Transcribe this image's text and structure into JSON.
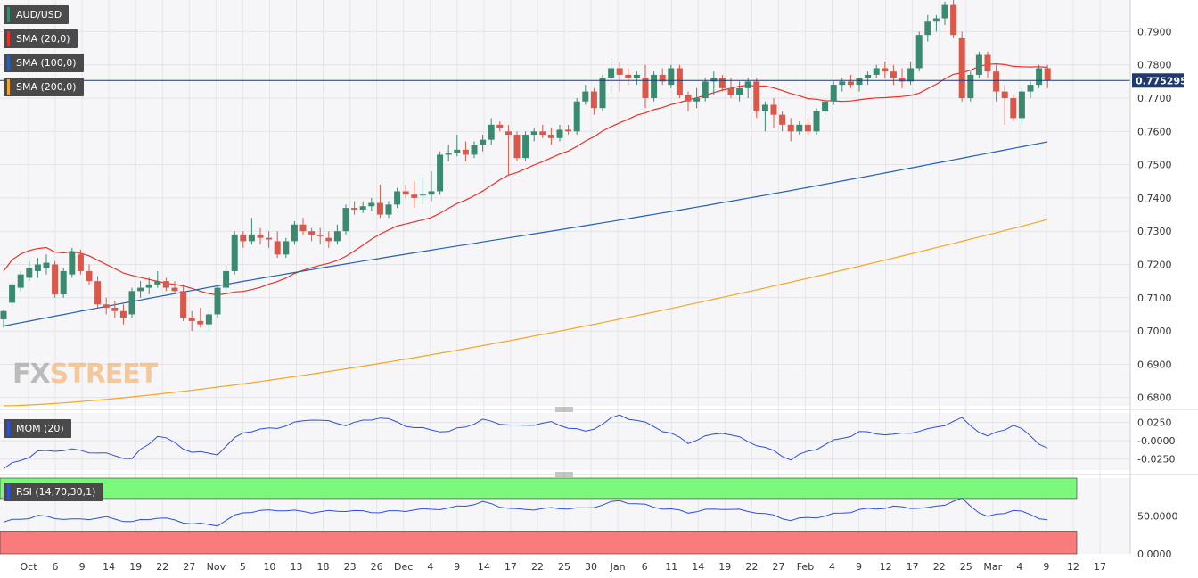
{
  "symbol": "AUD/USD",
  "indicators": {
    "sma20_label": "SMA (20,0)",
    "sma100_label": "SMA (100,0)",
    "sma200_label": "SMA (200,0)",
    "mom_label": "MOM (20)",
    "rsi_label": "RSI (14,70,30,1)"
  },
  "current_price": "0.775295",
  "logo": {
    "fx": "FX",
    "street": "STREET"
  },
  "colors": {
    "bull": "#3a8a70",
    "bear": "#d9584a",
    "sma20": "#e8312a",
    "sma100": "#2461b3",
    "sma200": "#f5a623",
    "mom_line": "#2b4fd8",
    "rsi_line": "#2b4fd8",
    "rsi_overbought": "#7cf87c",
    "rsi_oversold": "#f87c7c",
    "price_line": "#1e3a6e"
  },
  "chart_data": {
    "type": "candlestick",
    "ylim": [
      0.6775,
      0.7995
    ],
    "y_ticks": [
      "0.7900",
      "0.7800",
      "0.7700",
      "0.7600",
      "0.7500",
      "0.7400",
      "0.7300",
      "0.7200",
      "0.7100",
      "0.7000",
      "0.6900",
      "0.6800"
    ],
    "x_ticks": [
      "Oct",
      "6",
      "9",
      "14",
      "19",
      "22",
      "27",
      "Nov",
      "5",
      "10",
      "13",
      "18",
      "23",
      "26",
      "Dec",
      "4",
      "9",
      "14",
      "17",
      "22",
      "25",
      "30",
      "Jan",
      "6",
      "11",
      "14",
      "19",
      "22",
      "27",
      "Feb",
      "4",
      "9",
      "12",
      "17",
      "22",
      "25",
      "Mar",
      "4",
      "9",
      "12",
      "17"
    ],
    "candles": [
      {
        "o": 0.7035,
        "h": 0.7065,
        "l": 0.701,
        "c": 0.706
      },
      {
        "o": 0.7085,
        "h": 0.715,
        "l": 0.7075,
        "c": 0.714
      },
      {
        "o": 0.713,
        "h": 0.718,
        "l": 0.712,
        "c": 0.717
      },
      {
        "o": 0.716,
        "h": 0.721,
        "l": 0.715,
        "c": 0.719
      },
      {
        "o": 0.718,
        "h": 0.722,
        "l": 0.716,
        "c": 0.72
      },
      {
        "o": 0.719,
        "h": 0.723,
        "l": 0.717,
        "c": 0.7205
      },
      {
        "o": 0.72,
        "h": 0.721,
        "l": 0.71,
        "c": 0.711
      },
      {
        "o": 0.711,
        "h": 0.719,
        "l": 0.71,
        "c": 0.718
      },
      {
        "o": 0.717,
        "h": 0.725,
        "l": 0.716,
        "c": 0.724
      },
      {
        "o": 0.723,
        "h": 0.7245,
        "l": 0.717,
        "c": 0.718
      },
      {
        "o": 0.718,
        "h": 0.72,
        "l": 0.714,
        "c": 0.715
      },
      {
        "o": 0.715,
        "h": 0.7165,
        "l": 0.707,
        "c": 0.708
      },
      {
        "o": 0.708,
        "h": 0.71,
        "l": 0.705,
        "c": 0.707
      },
      {
        "o": 0.707,
        "h": 0.709,
        "l": 0.704,
        "c": 0.706
      },
      {
        "o": 0.706,
        "h": 0.708,
        "l": 0.702,
        "c": 0.704
      },
      {
        "o": 0.705,
        "h": 0.713,
        "l": 0.704,
        "c": 0.712
      },
      {
        "o": 0.712,
        "h": 0.715,
        "l": 0.71,
        "c": 0.713
      },
      {
        "o": 0.713,
        "h": 0.716,
        "l": 0.711,
        "c": 0.714
      },
      {
        "o": 0.714,
        "h": 0.718,
        "l": 0.713,
        "c": 0.715
      },
      {
        "o": 0.715,
        "h": 0.716,
        "l": 0.712,
        "c": 0.713
      },
      {
        "o": 0.713,
        "h": 0.715,
        "l": 0.711,
        "c": 0.712
      },
      {
        "o": 0.712,
        "h": 0.714,
        "l": 0.703,
        "c": 0.704
      },
      {
        "o": 0.704,
        "h": 0.706,
        "l": 0.7,
        "c": 0.703
      },
      {
        "o": 0.703,
        "h": 0.707,
        "l": 0.701,
        "c": 0.702
      },
      {
        "o": 0.702,
        "h": 0.7065,
        "l": 0.699,
        "c": 0.705
      },
      {
        "o": 0.705,
        "h": 0.714,
        "l": 0.704,
        "c": 0.713
      },
      {
        "o": 0.713,
        "h": 0.72,
        "l": 0.712,
        "c": 0.718
      },
      {
        "o": 0.718,
        "h": 0.73,
        "l": 0.717,
        "c": 0.729
      },
      {
        "o": 0.729,
        "h": 0.73,
        "l": 0.725,
        "c": 0.727
      },
      {
        "o": 0.727,
        "h": 0.734,
        "l": 0.726,
        "c": 0.729
      },
      {
        "o": 0.729,
        "h": 0.731,
        "l": 0.726,
        "c": 0.728
      },
      {
        "o": 0.728,
        "h": 0.73,
        "l": 0.725,
        "c": 0.7275
      },
      {
        "o": 0.727,
        "h": 0.73,
        "l": 0.722,
        "c": 0.723
      },
      {
        "o": 0.723,
        "h": 0.728,
        "l": 0.722,
        "c": 0.727
      },
      {
        "o": 0.727,
        "h": 0.733,
        "l": 0.726,
        "c": 0.732
      },
      {
        "o": 0.732,
        "h": 0.734,
        "l": 0.729,
        "c": 0.73
      },
      {
        "o": 0.73,
        "h": 0.731,
        "l": 0.727,
        "c": 0.729
      },
      {
        "o": 0.729,
        "h": 0.731,
        "l": 0.726,
        "c": 0.7285
      },
      {
        "o": 0.728,
        "h": 0.73,
        "l": 0.725,
        "c": 0.727
      },
      {
        "o": 0.727,
        "h": 0.732,
        "l": 0.726,
        "c": 0.73
      },
      {
        "o": 0.73,
        "h": 0.738,
        "l": 0.729,
        "c": 0.737
      },
      {
        "o": 0.737,
        "h": 0.739,
        "l": 0.735,
        "c": 0.7365
      },
      {
        "o": 0.7365,
        "h": 0.739,
        "l": 0.7355,
        "c": 0.7375
      },
      {
        "o": 0.7375,
        "h": 0.74,
        "l": 0.736,
        "c": 0.7385
      },
      {
        "o": 0.7385,
        "h": 0.744,
        "l": 0.734,
        "c": 0.735
      },
      {
        "o": 0.735,
        "h": 0.739,
        "l": 0.734,
        "c": 0.738
      },
      {
        "o": 0.738,
        "h": 0.743,
        "l": 0.737,
        "c": 0.742
      },
      {
        "o": 0.742,
        "h": 0.744,
        "l": 0.74,
        "c": 0.741
      },
      {
        "o": 0.741,
        "h": 0.745,
        "l": 0.737,
        "c": 0.74
      },
      {
        "o": 0.741,
        "h": 0.746,
        "l": 0.738,
        "c": 0.741
      },
      {
        "o": 0.741,
        "h": 0.748,
        "l": 0.739,
        "c": 0.742
      },
      {
        "o": 0.742,
        "h": 0.754,
        "l": 0.741,
        "c": 0.753
      },
      {
        "o": 0.753,
        "h": 0.756,
        "l": 0.751,
        "c": 0.7535
      },
      {
        "o": 0.7535,
        "h": 0.759,
        "l": 0.7525,
        "c": 0.7545
      },
      {
        "o": 0.7545,
        "h": 0.757,
        "l": 0.751,
        "c": 0.753
      },
      {
        "o": 0.753,
        "h": 0.757,
        "l": 0.752,
        "c": 0.756
      },
      {
        "o": 0.756,
        "h": 0.759,
        "l": 0.754,
        "c": 0.7575
      },
      {
        "o": 0.7575,
        "h": 0.764,
        "l": 0.756,
        "c": 0.762
      },
      {
        "o": 0.762,
        "h": 0.763,
        "l": 0.76,
        "c": 0.761
      },
      {
        "o": 0.76,
        "h": 0.762,
        "l": 0.747,
        "c": 0.759
      },
      {
        "o": 0.759,
        "h": 0.76,
        "l": 0.751,
        "c": 0.752
      },
      {
        "o": 0.752,
        "h": 0.76,
        "l": 0.751,
        "c": 0.759
      },
      {
        "o": 0.759,
        "h": 0.761,
        "l": 0.757,
        "c": 0.76
      },
      {
        "o": 0.76,
        "h": 0.762,
        "l": 0.758,
        "c": 0.759
      },
      {
        "o": 0.759,
        "h": 0.761,
        "l": 0.756,
        "c": 0.758
      },
      {
        "o": 0.758,
        "h": 0.762,
        "l": 0.757,
        "c": 0.7605
      },
      {
        "o": 0.7605,
        "h": 0.762,
        "l": 0.759,
        "c": 0.76
      },
      {
        "o": 0.76,
        "h": 0.77,
        "l": 0.759,
        "c": 0.769
      },
      {
        "o": 0.769,
        "h": 0.774,
        "l": 0.768,
        "c": 0.772
      },
      {
        "o": 0.772,
        "h": 0.773,
        "l": 0.765,
        "c": 0.767
      },
      {
        "o": 0.767,
        "h": 0.777,
        "l": 0.766,
        "c": 0.776
      },
      {
        "o": 0.776,
        "h": 0.782,
        "l": 0.771,
        "c": 0.779
      },
      {
        "o": 0.779,
        "h": 0.781,
        "l": 0.772,
        "c": 0.777
      },
      {
        "o": 0.777,
        "h": 0.779,
        "l": 0.774,
        "c": 0.776
      },
      {
        "o": 0.776,
        "h": 0.778,
        "l": 0.774,
        "c": 0.777
      },
      {
        "o": 0.776,
        "h": 0.78,
        "l": 0.767,
        "c": 0.77
      },
      {
        "o": 0.77,
        "h": 0.778,
        "l": 0.769,
        "c": 0.777
      },
      {
        "o": 0.777,
        "h": 0.779,
        "l": 0.774,
        "c": 0.775
      },
      {
        "o": 0.774,
        "h": 0.78,
        "l": 0.773,
        "c": 0.779
      },
      {
        "o": 0.779,
        "h": 0.78,
        "l": 0.77,
        "c": 0.771
      },
      {
        "o": 0.771,
        "h": 0.772,
        "l": 0.766,
        "c": 0.769
      },
      {
        "o": 0.769,
        "h": 0.773,
        "l": 0.767,
        "c": 0.77
      },
      {
        "o": 0.77,
        "h": 0.776,
        "l": 0.769,
        "c": 0.775
      },
      {
        "o": 0.775,
        "h": 0.778,
        "l": 0.771,
        "c": 0.776
      },
      {
        "o": 0.776,
        "h": 0.777,
        "l": 0.772,
        "c": 0.773
      },
      {
        "o": 0.773,
        "h": 0.776,
        "l": 0.77,
        "c": 0.771
      },
      {
        "o": 0.771,
        "h": 0.775,
        "l": 0.769,
        "c": 0.773
      },
      {
        "o": 0.773,
        "h": 0.776,
        "l": 0.77,
        "c": 0.775
      },
      {
        "o": 0.775,
        "h": 0.776,
        "l": 0.764,
        "c": 0.766
      },
      {
        "o": 0.766,
        "h": 0.769,
        "l": 0.76,
        "c": 0.768
      },
      {
        "o": 0.768,
        "h": 0.77,
        "l": 0.761,
        "c": 0.765
      },
      {
        "o": 0.765,
        "h": 0.766,
        "l": 0.76,
        "c": 0.762
      },
      {
        "o": 0.762,
        "h": 0.764,
        "l": 0.757,
        "c": 0.76
      },
      {
        "o": 0.76,
        "h": 0.763,
        "l": 0.759,
        "c": 0.762
      },
      {
        "o": 0.762,
        "h": 0.764,
        "l": 0.759,
        "c": 0.76
      },
      {
        "o": 0.76,
        "h": 0.767,
        "l": 0.759,
        "c": 0.766
      },
      {
        "o": 0.766,
        "h": 0.77,
        "l": 0.765,
        "c": 0.769
      },
      {
        "o": 0.769,
        "h": 0.775,
        "l": 0.768,
        "c": 0.774
      },
      {
        "o": 0.774,
        "h": 0.776,
        "l": 0.772,
        "c": 0.775
      },
      {
        "o": 0.775,
        "h": 0.777,
        "l": 0.773,
        "c": 0.774
      },
      {
        "o": 0.774,
        "h": 0.776,
        "l": 0.772,
        "c": 0.776
      },
      {
        "o": 0.776,
        "h": 0.778,
        "l": 0.774,
        "c": 0.777
      },
      {
        "o": 0.777,
        "h": 0.78,
        "l": 0.776,
        "c": 0.779
      },
      {
        "o": 0.779,
        "h": 0.781,
        "l": 0.776,
        "c": 0.778
      },
      {
        "o": 0.778,
        "h": 0.78,
        "l": 0.774,
        "c": 0.776
      },
      {
        "o": 0.776,
        "h": 0.779,
        "l": 0.773,
        "c": 0.775
      },
      {
        "o": 0.775,
        "h": 0.781,
        "l": 0.774,
        "c": 0.779
      },
      {
        "o": 0.779,
        "h": 0.79,
        "l": 0.778,
        "c": 0.789
      },
      {
        "o": 0.789,
        "h": 0.795,
        "l": 0.787,
        "c": 0.793
      },
      {
        "o": 0.793,
        "h": 0.795,
        "l": 0.79,
        "c": 0.794
      },
      {
        "o": 0.794,
        "h": 0.799,
        "l": 0.792,
        "c": 0.798
      },
      {
        "o": 0.798,
        "h": 0.7995,
        "l": 0.788,
        "c": 0.789
      },
      {
        "o": 0.788,
        "h": 0.79,
        "l": 0.769,
        "c": 0.77
      },
      {
        "o": 0.77,
        "h": 0.778,
        "l": 0.769,
        "c": 0.777
      },
      {
        "o": 0.777,
        "h": 0.784,
        "l": 0.776,
        "c": 0.783
      },
      {
        "o": 0.783,
        "h": 0.784,
        "l": 0.776,
        "c": 0.778
      },
      {
        "o": 0.778,
        "h": 0.78,
        "l": 0.769,
        "c": 0.772
      },
      {
        "o": 0.772,
        "h": 0.774,
        "l": 0.762,
        "c": 0.77
      },
      {
        "o": 0.77,
        "h": 0.771,
        "l": 0.763,
        "c": 0.764
      },
      {
        "o": 0.764,
        "h": 0.773,
        "l": 0.762,
        "c": 0.772
      },
      {
        "o": 0.772,
        "h": 0.775,
        "l": 0.77,
        "c": 0.774
      },
      {
        "o": 0.774,
        "h": 0.78,
        "l": 0.773,
        "c": 0.779
      },
      {
        "o": 0.779,
        "h": 0.78,
        "l": 0.773,
        "c": 0.7753
      }
    ],
    "mom": {
      "ylim": [
        -0.04,
        0.038
      ],
      "y_ticks": [
        "0.0250",
        "-0.0000",
        "-0.0250"
      ],
      "tick_values": [
        0.025,
        0.0,
        -0.025
      ],
      "anchors": [
        [
          0,
          -0.038
        ],
        [
          4,
          -0.015
        ],
        [
          8,
          -0.012
        ],
        [
          12,
          -0.018
        ],
        [
          15,
          -0.025
        ],
        [
          18,
          0.008
        ],
        [
          22,
          -0.015
        ],
        [
          25,
          -0.018
        ],
        [
          28,
          0.012
        ],
        [
          32,
          0.018
        ],
        [
          36,
          0.03
        ],
        [
          40,
          0.022
        ],
        [
          44,
          0.032
        ],
        [
          48,
          0.018
        ],
        [
          52,
          0.012
        ],
        [
          56,
          0.028
        ],
        [
          60,
          0.02
        ],
        [
          64,
          0.025
        ],
        [
          68,
          0.012
        ],
        [
          72,
          0.035
        ],
        [
          76,
          0.02
        ],
        [
          80,
          -0.002
        ],
        [
          84,
          0.012
        ],
        [
          88,
          -0.005
        ],
        [
          92,
          -0.025
        ],
        [
          96,
          -0.005
        ],
        [
          100,
          0.012
        ],
        [
          104,
          0.008
        ],
        [
          108,
          0.015
        ],
        [
          112,
          0.03
        ],
        [
          115,
          0.005
        ],
        [
          118,
          0.022
        ],
        [
          122,
          -0.01
        ],
        [
          125,
          0.0
        ],
        [
          126,
          -0.002
        ]
      ]
    },
    "rsi": {
      "ylim": [
        0,
        100
      ],
      "overbought": 70,
      "oversold": 30,
      "y_ticks": [
        "50.0000",
        "0.0000"
      ],
      "tick_values": [
        50,
        0
      ],
      "anchors": [
        [
          0,
          42
        ],
        [
          4,
          50
        ],
        [
          8,
          45
        ],
        [
          12,
          48
        ],
        [
          15,
          42
        ],
        [
          18,
          48
        ],
        [
          22,
          40
        ],
        [
          25,
          38
        ],
        [
          28,
          55
        ],
        [
          32,
          58
        ],
        [
          36,
          55
        ],
        [
          40,
          57
        ],
        [
          44,
          55
        ],
        [
          48,
          58
        ],
        [
          52,
          60
        ],
        [
          56,
          68
        ],
        [
          60,
          58
        ],
        [
          64,
          60
        ],
        [
          68,
          60
        ],
        [
          72,
          70
        ],
        [
          76,
          62
        ],
        [
          80,
          55
        ],
        [
          84,
          60
        ],
        [
          88,
          55
        ],
        [
          92,
          45
        ],
        [
          96,
          50
        ],
        [
          100,
          58
        ],
        [
          104,
          62
        ],
        [
          108,
          60
        ],
        [
          112,
          72
        ],
        [
          115,
          48
        ],
        [
          118,
          58
        ],
        [
          122,
          45
        ],
        [
          125,
          52
        ],
        [
          126,
          50
        ]
      ]
    }
  }
}
